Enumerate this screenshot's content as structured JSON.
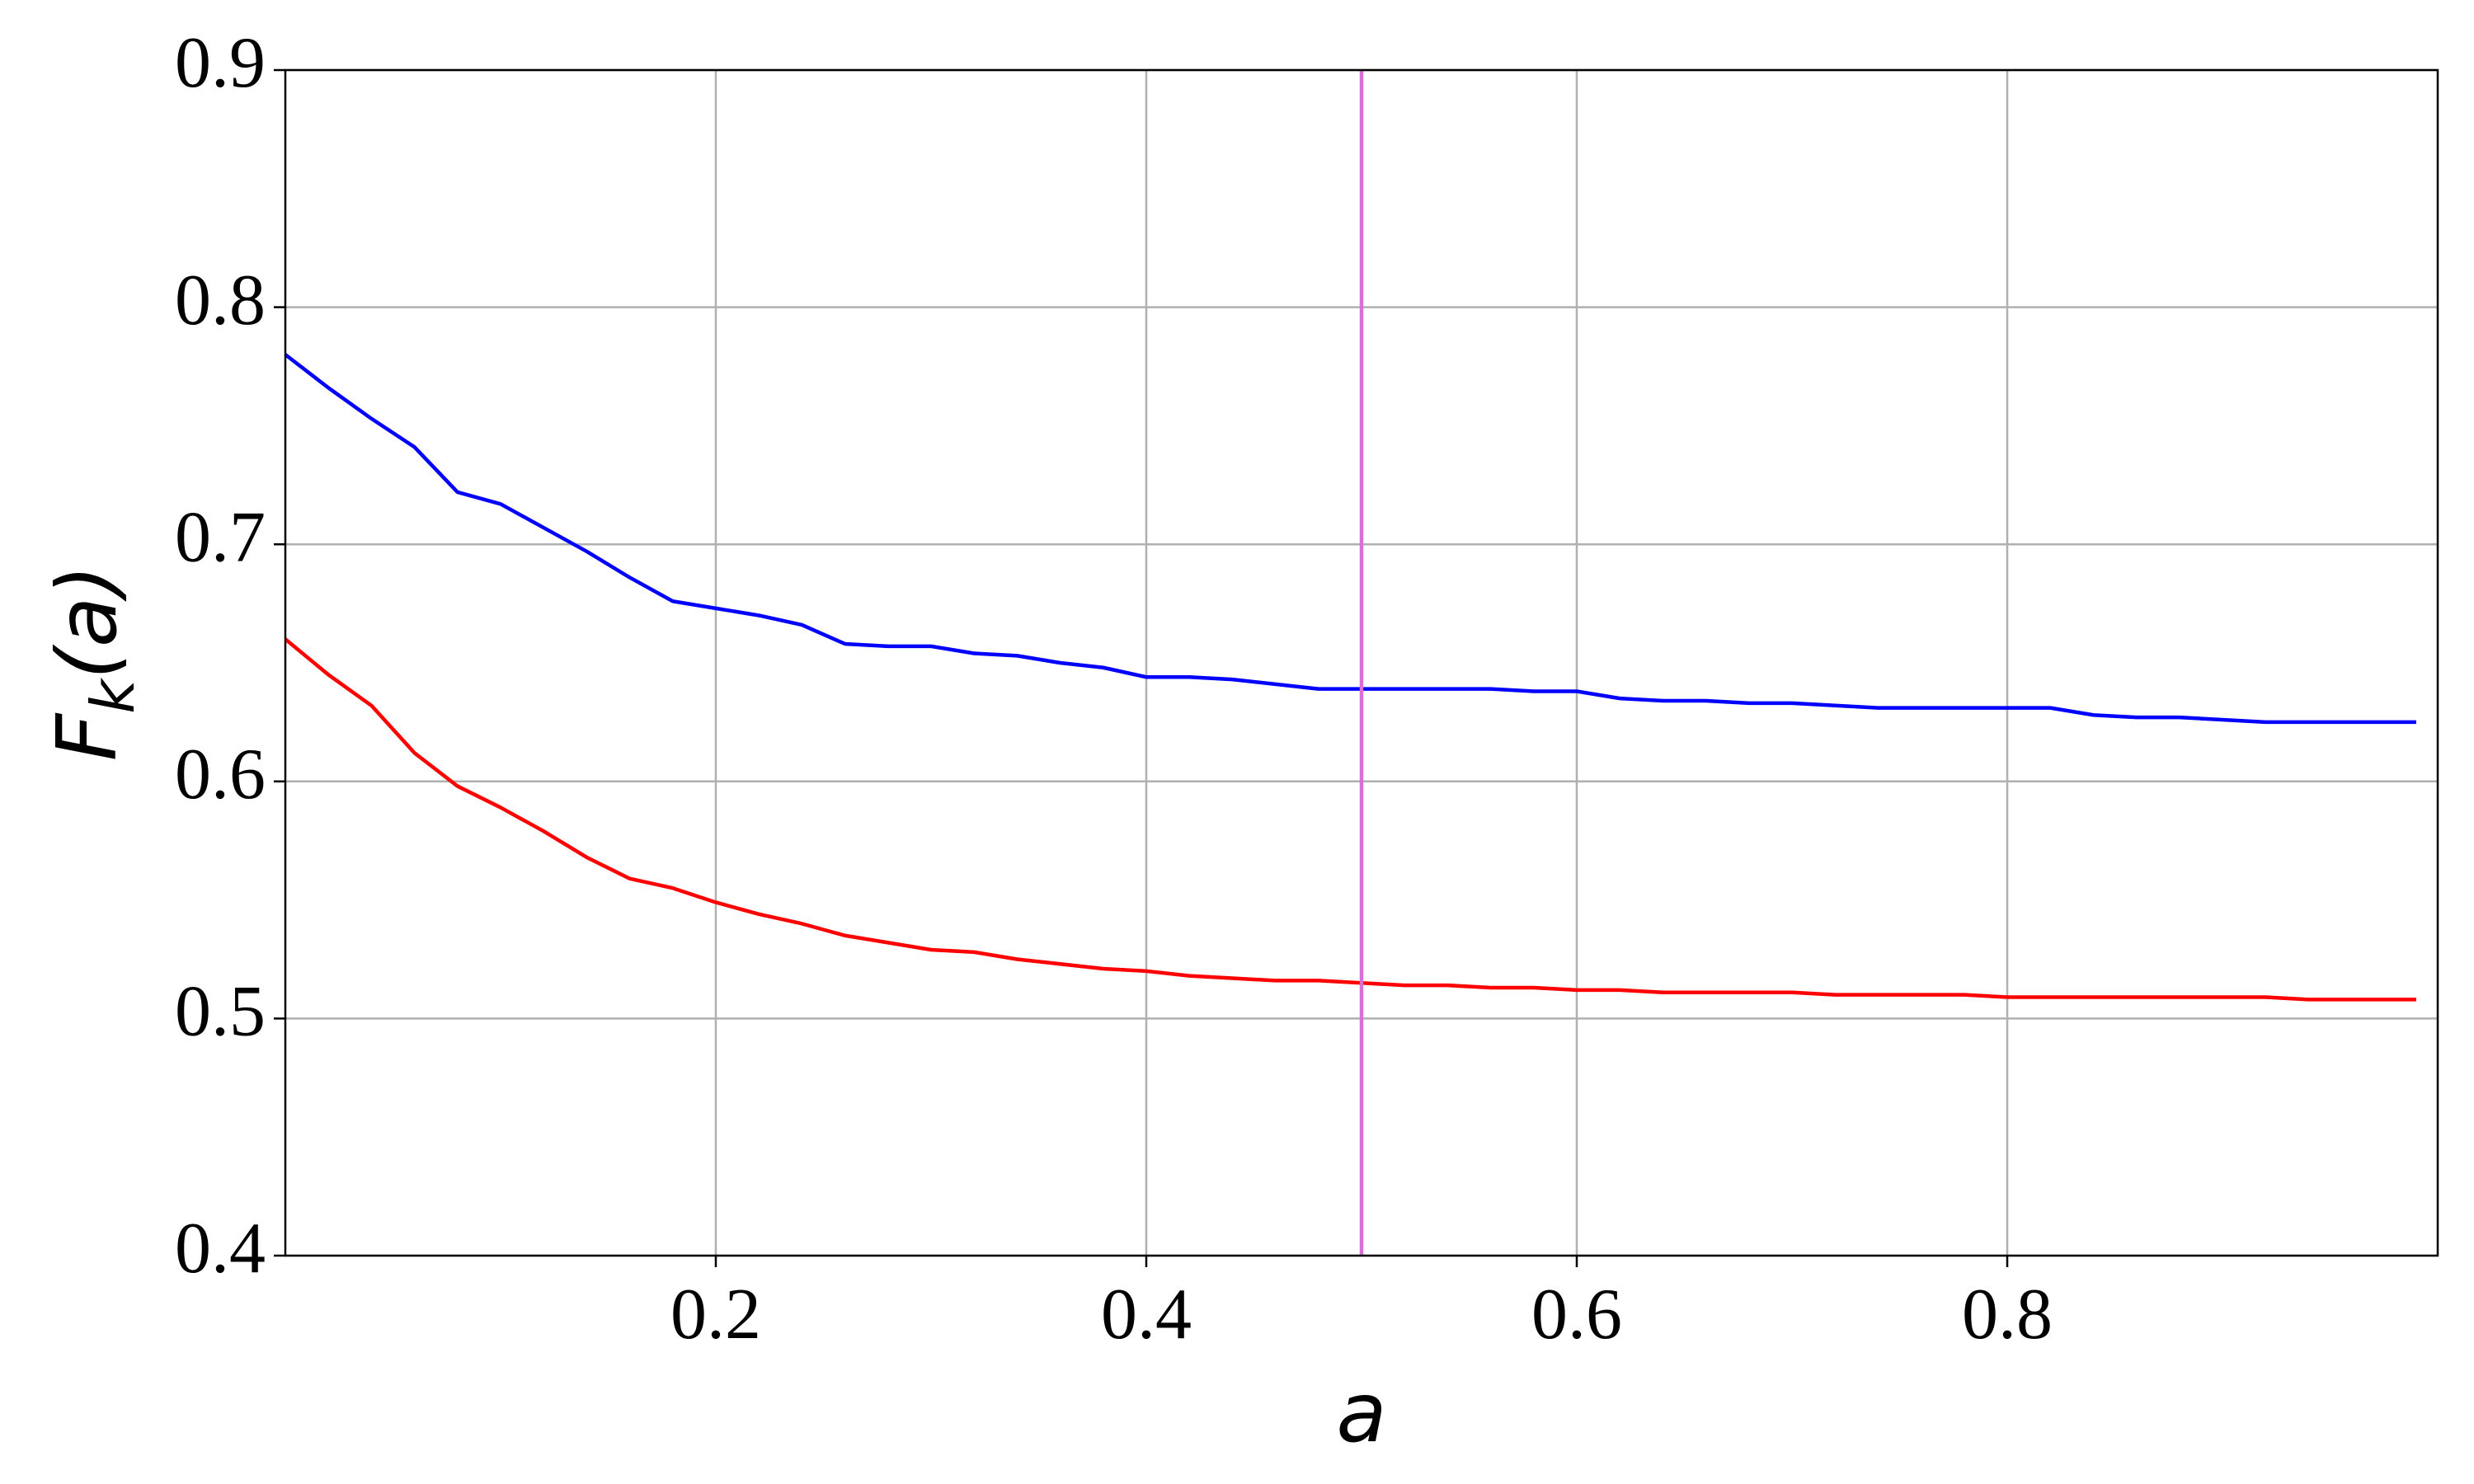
{
  "chart_data": {
    "type": "line",
    "xlabel": "a",
    "ylabel_parts": [
      "F",
      "k",
      "(a)"
    ],
    "x": [
      0,
      0.02,
      0.04,
      0.06,
      0.08,
      0.1,
      0.12,
      0.14,
      0.16,
      0.18,
      0.2,
      0.22,
      0.24,
      0.26,
      0.28,
      0.3,
      0.32,
      0.34,
      0.36,
      0.38,
      0.4,
      0.42,
      0.44,
      0.46,
      0.48,
      0.5,
      0.52,
      0.54,
      0.56,
      0.58,
      0.6,
      0.62,
      0.64,
      0.66,
      0.68,
      0.7,
      0.72,
      0.74,
      0.76,
      0.78,
      0.8,
      0.82,
      0.84,
      0.86,
      0.88,
      0.9,
      0.92,
      0.94,
      0.96,
      0.99
    ],
    "series": [
      {
        "color": "#0000ff",
        "values": [
          0.78,
          0.766,
          0.753,
          0.741,
          0.722,
          0.717,
          0.707,
          0.697,
          0.686,
          0.676,
          0.673,
          0.67,
          0.666,
          0.658,
          0.657,
          0.657,
          0.654,
          0.653,
          0.65,
          0.648,
          0.644,
          0.644,
          0.643,
          0.641,
          0.639,
          0.639,
          0.639,
          0.639,
          0.639,
          0.638,
          0.638,
          0.635,
          0.634,
          0.634,
          0.633,
          0.633,
          0.632,
          0.631,
          0.631,
          0.631,
          0.631,
          0.631,
          0.628,
          0.627,
          0.627,
          0.626,
          0.625,
          0.625,
          0.625,
          0.625
        ]
      },
      {
        "color": "#ff0000",
        "values": [
          0.66,
          0.645,
          0.632,
          0.612,
          0.598,
          0.589,
          0.579,
          0.568,
          0.559,
          0.555,
          0.549,
          0.544,
          0.54,
          0.535,
          0.532,
          0.529,
          0.528,
          0.525,
          0.523,
          0.521,
          0.52,
          0.518,
          0.517,
          0.516,
          0.516,
          0.515,
          0.514,
          0.514,
          0.513,
          0.513,
          0.512,
          0.512,
          0.511,
          0.511,
          0.511,
          0.511,
          0.51,
          0.51,
          0.51,
          0.51,
          0.509,
          0.509,
          0.509,
          0.509,
          0.509,
          0.509,
          0.509,
          0.508,
          0.508,
          0.508
        ]
      }
    ],
    "vline": {
      "x": 0.5,
      "color": "#da70d6"
    },
    "xlim": [
      0,
      1
    ],
    "ylim": [
      0.4,
      0.9
    ],
    "xticks": [
      0.2,
      0.4,
      0.6,
      0.8
    ],
    "yticks": [
      0.4,
      0.5,
      0.6,
      0.7,
      0.8,
      0.9
    ],
    "grid": true
  }
}
